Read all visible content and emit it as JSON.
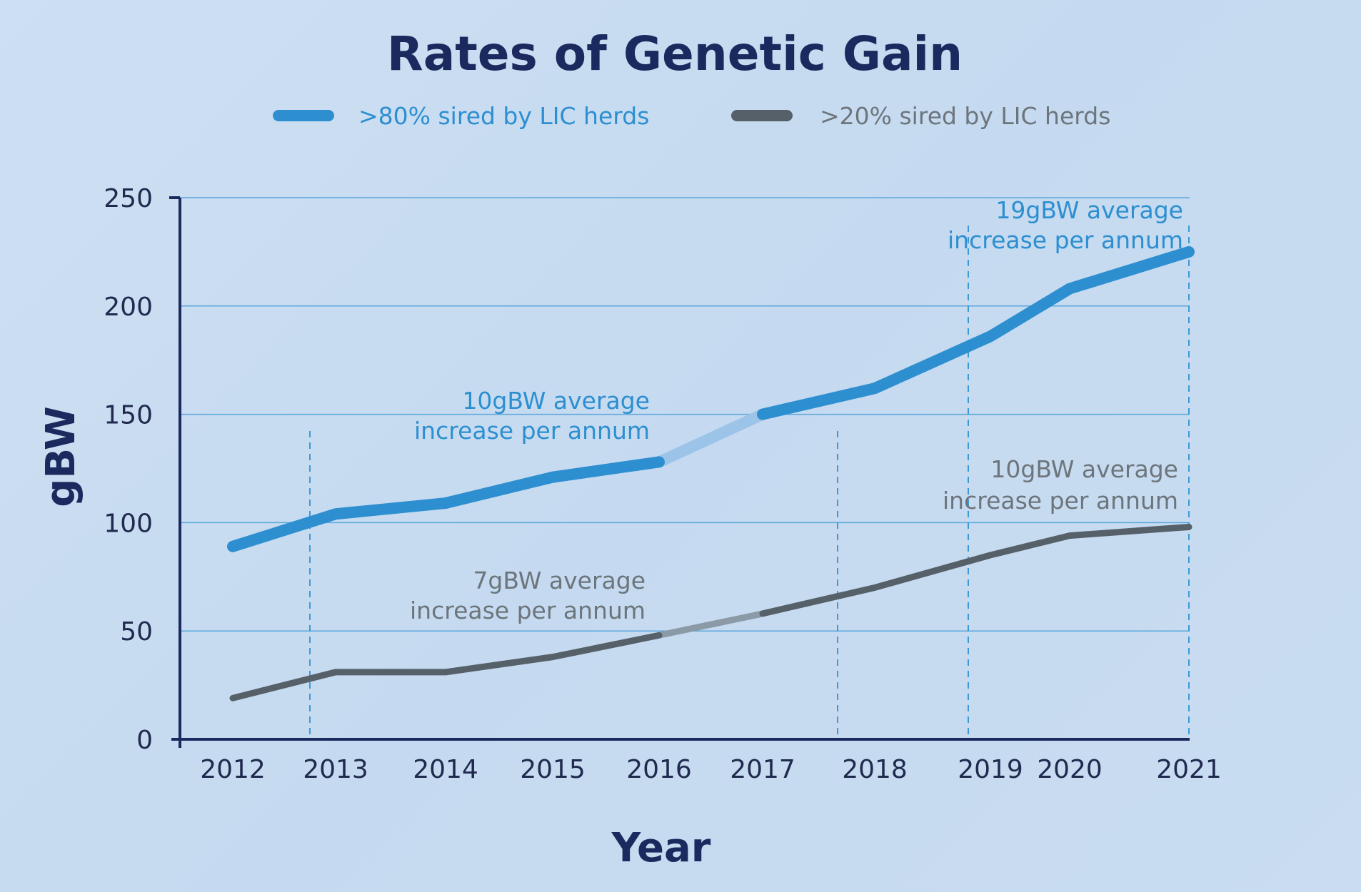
{
  "chart_data": {
    "type": "line",
    "title": "Rates of Genetic Gain",
    "xlabel": "Year",
    "ylabel": "gBW",
    "categories": [
      "2012",
      "2013",
      "2014",
      "2015",
      "2016",
      "2017",
      "2018",
      "2019",
      "2020",
      "2021"
    ],
    "ylim": [
      0,
      250
    ],
    "yticks": [
      0,
      50,
      100,
      150,
      200,
      250
    ],
    "grid": true,
    "legend_position": "top",
    "series": [
      {
        "name": ">80% sired by LIC herds",
        "color": "#2d8fd0",
        "faded_color": "#9cc3e8",
        "values": [
          89,
          104,
          109,
          121,
          128,
          150,
          162,
          186,
          208,
          225
        ]
      },
      {
        "name": ">20% sired by LIC herds",
        "color": "#566069",
        "faded_color": "#8b9aa6",
        "values": [
          19,
          31,
          31,
          38,
          48,
          58,
          70,
          85,
          94,
          98
        ]
      }
    ],
    "annotations": [
      {
        "line1": "10gBW average",
        "line2": "increase per annum",
        "color": "#2d8fd0"
      },
      {
        "line1": "19gBW average",
        "line2": "increase per annum",
        "color": "#2d8fd0"
      },
      {
        "line1": "7gBW average",
        "line2": "increase per annum",
        "color": "#6d757c"
      },
      {
        "line1": "10gBW average",
        "line2": "increase per annum",
        "color": "#6d757c"
      }
    ]
  }
}
